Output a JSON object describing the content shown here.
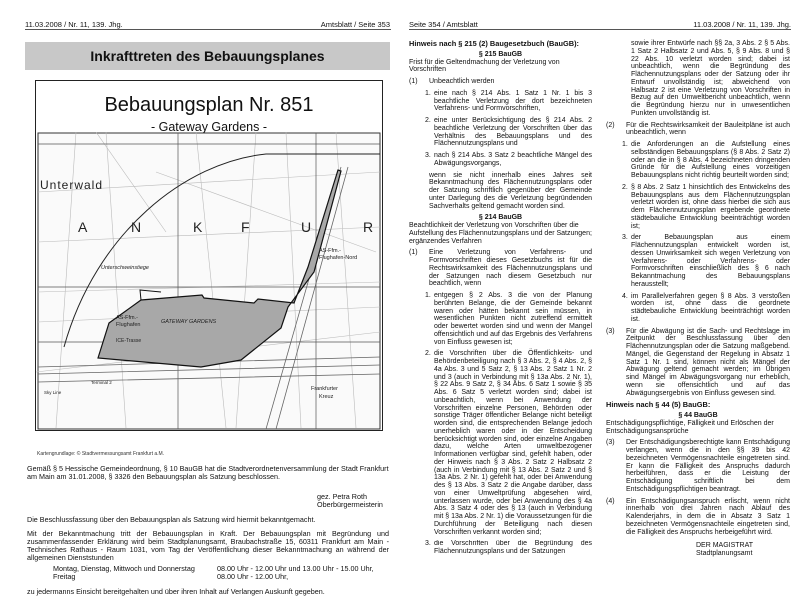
{
  "left_page": {
    "header_left": "11.03.2008 / Nr. 11, 139. Jhg.",
    "header_right": "Amtsblatt / Seite 353",
    "section_title": "Inkrafttreten des Bebauungsplanes",
    "map": {
      "title": "Bebauungsplan Nr. 851",
      "subtitle": "- Gateway Gardens -",
      "labels": [
        "Unterwald",
        "A",
        "N",
        "K",
        "F",
        "U",
        "R",
        "Unterschweinstiege",
        "AS-Ffm.-",
        "Flughafen-Nord",
        "AS-Ffm.-",
        "Flughafen",
        "GATEWAY GARDENS",
        "ICE-Trasse",
        "Terminal 2",
        "Sky Line",
        "Frankfurter",
        "Kreuz"
      ],
      "caption": "Kartengrundlage: © Stadtvermessungsamt Frankfurt a.M."
    },
    "para1": "Gemäß § 5 Hessische Gemeindeordnung, § 10 BauGB hat die Stadtverordnetenversammlung der Stadt Frankfurt am Main am 31.01.2008, § 3326 den Bebauungsplan als Satzung beschlossen.",
    "signature_name": "gez. Petra Roth",
    "signature_title": "Oberbürgermeisterin",
    "para2": "Die Beschlussfassung über den Bebauungsplan als Satzung wird hiermit bekanntgemacht.",
    "para3": "Mit der Bekanntmachung tritt der Bebauungsplan in Kraft. Der Bebauungsplan mit Begründung und zusammenfassender Erklärung wird beim Stadtplanungsamt, Braubachstraße 15, 60311 Frankfurt am Main - Technisches Rathaus - Raum 1031, vom Tag der Veröffentlichung dieser Bekanntmachung an während der allgemeinen Dienststunden",
    "hours": [
      {
        "days": "Montag, Dienstag, Mittwoch und Donnerstag",
        "time": "08.00 Uhr - 12.00 Uhr und 13.00 Uhr - 15.00 Uhr,"
      },
      {
        "days": "Freitag",
        "time": "08.00 Uhr - 12.00 Uhr,"
      }
    ],
    "para4": "zu jedermanns Einsicht bereitgehalten und über ihren Inhalt auf Verlangen Auskunft gegeben."
  },
  "right_page": {
    "header_left": "Seite 354 / Amtsblatt",
    "header_right": "11.03.2008 / Nr. 11, 139. Jhg.",
    "h215": "Hinweis nach § 215 (2) Baugesetzbuch (BauGB):",
    "s215_title": "§ 215 BauGB",
    "s215_sub": "Frist für die Geltendmachung der Verletzung von Vorschriften",
    "s215_1_num": "(1)",
    "s215_1_text": "Unbeachtlich werden",
    "s215_1_items": [
      {
        "n": "1.",
        "t": "eine nach § 214 Abs. 1 Satz 1 Nr. 1 bis 3 beachtliche Verletzung der dort bezeichneten Verfahrens- und Formvorschriften,"
      },
      {
        "n": "2.",
        "t": "eine unter Berücksichtigung des § 214 Abs. 2 beachtliche Verletzung der Vorschriften über das Verhältnis des Bebauungsplans und des Flächennutzungsplans und"
      },
      {
        "n": "3.",
        "t": "nach § 214 Abs. 3 Satz 2 beachtliche Mängel des Abwägungsvorgangs,"
      }
    ],
    "s215_1_tail": "wenn sie nicht innerhalb eines Jahres seit Bekanntmachung des Flächennutzungsplans oder der Satzung schriftlich gegenüber der Gemeinde unter Darlegung des die Verletzung begründenden Sachverhalts geltend gemacht worden sind.",
    "s214_title": "§ 214 BauGB",
    "s214_sub": "Beachtlichkeit der Verletzung von Vorschriften über die Aufstellung des Flächennutzungsplans und der Satzungen; ergänzendes Verfahren",
    "s214_1_num": "(1)",
    "s214_1_text": "Eine Verletzung von Verfahrens- und Formvorschriften dieses Gesetzbuchs ist für die Rechtswirksamkeit des Flächennutzungsplans und der Satzungen nach diesem Gesetzbuch nur beachtlich, wenn",
    "s214_1_items": [
      {
        "n": "1.",
        "t": "entgegen § 2 Abs. 3 die von der Planung berührten Belange, die der Gemeinde bekannt waren oder hätten bekannt sein müssen, in wesentlichen Punkten nicht zutreffend ermittelt oder bewertet worden sind und wenn der Mangel offensichtlich und auf das Ergebnis des Verfahrens von Einfluss gewesen ist;"
      },
      {
        "n": "2.",
        "t": "die Vorschriften über die Öffentlichkeits- und Behördenbeteiligung nach § 3 Abs. 2, § 4 Abs. 2, § 4a Abs. 3 und 5 Satz 2, § 13 Abs. 2 Satz 1 Nr. 2 und 3 (auch in Verbindung mit § 13a Abs. 2 Nr. 1), § 22 Abs. 9 Satz 2, § 34 Abs. 6 Satz 1 sowie § 35 Abs. 6 Satz 5 verletzt worden sind; dabei ist unbeachtlich, wenn bei Anwendung der Vorschriften einzelne Personen, Behörden oder sonstige Träger öffentlicher Belange nicht beteiligt worden sind, die entsprechenden Belange jedoch unerheblich waren oder in der Entscheidung berücksichtigt worden sind, oder einzelne Angaben dazu, welche Arten umweltbezogener Informationen verfügbar sind, gefehlt haben, oder der Hinweis nach § 3 Abs. 2 Satz 2 Halbsatz 2 (auch in Verbindung mit § 13 Abs. 2 Satz 2 und § 13a Abs. 2 Nr. 1) gefehlt hat, oder bei Anwendung des § 13 Abs. 3 Satz 2 die Angabe darüber, dass von einer Umweltprüfung abgesehen wird, unterlassen wurde, oder bei Anwendung des § 4a Abs. 3 Satz 4 oder des § 13 (auch in Verbindung mit § 13a Abs. 2 Nr. 1) die Voraussetzungen für die Durchführung der Beteiligung nach diesen Vorschriften verkannt worden sind;"
      },
      {
        "n": "3.",
        "t": "die Vorschriften über die Begründung des Flächennutzungsplans und der Satzungen sowie ihrer Entwürfe nach §§ 2a, 3 Abs. 2 § 5 Abs. 1 Satz 2 Halbsatz 2 und Abs. 5, § 9 Abs. 8 und § 22 Abs. 10 verletzt worden sind; dabei ist unbeachtlich, wenn die Begründung des Flächennutzungsplans oder der Satzung oder ihr Entwurf unvollständig ist; abweichend von Halbsatz 2 ist eine Verletzung von Vorschriften in Bezug auf den Umweltbericht unbeachtlich, wenn die Begründung hierzu nur in unwesentlichen Punkten unvollständig ist."
      }
    ],
    "s214_2_num": "(2)",
    "s214_2_text": "Für die Rechtswirksamkeit der Bauleitpläne ist auch unbeachtlich, wenn",
    "s214_2_items": [
      {
        "n": "1.",
        "t": "die Anforderungen an die Aufstellung eines selbständigen Bebauungsplans (§ 8 Abs. 2 Satz 2) oder an die in § 8 Abs. 4 bezeichneten dringenden Gründe für die Aufstellung eines vorzeitigen Bebauungsplans nicht richtig beurteilt worden sind;"
      },
      {
        "n": "2.",
        "t": "§ 8 Abs. 2 Satz 1 hinsichtlich des Entwickelns des Bebauungsplans aus dem Flächennutzungsplan verletzt worden ist, ohne dass hierbei die sich aus dem Flächennutzungsplan ergebende geordnete städtebauliche Entwicklung beeinträchtigt worden ist;"
      },
      {
        "n": "3.",
        "t": "der Bebauungsplan aus einem Flächennutzungsplan entwickelt worden ist, dessen Unwirksamkeit sich wegen Verletzung von Verfahrens- oder Verfahrens- oder Formvorschriften einschließlich des § 6 nach Bekanntmachung des Bebauungsplans herausstellt;"
      },
      {
        "n": "4.",
        "t": "im Parallelverfahren gegen § 8 Abs. 3 verstoßen worden ist, ohne dass die geordnete städtebauliche Entwicklung beeinträchtigt worden ist."
      }
    ],
    "s214_3_num": "(3)",
    "s214_3_text": "Für die Abwägung ist die Sach- und Rechtslage im Zeitpunkt der Beschlussfassung über den Flächennutzungsplan oder die Satzung maßgebend. Mängel, die Gegenstand der Regelung in Absatz 1 Satz 1 Nr. 1 sind, können nicht als Mängel der Abwägung geltend gemacht werden; im Übrigen sind Mängel im Abwägungsvorgang nur erheblich, wenn sie offensichtlich und auf das Abwägungsergebnis von Einfluss gewesen sind.",
    "h44": "Hinweis nach § 44 (5) BauGB:",
    "s44_title": "§ 44 BauGB",
    "s44_sub": "Entschädigungspflichtige, Fälligkeit und Erlöschen der Entschädigungsansprüche",
    "s44_items": [
      {
        "n": "(3)",
        "t": "Der Entschädigungsberechtigte kann Entschädigung verlangen, wenn die in den §§ 39 bis 42 bezeichneten Vermögensnachteile eingetreten sind. Er kann die Fälligkeit des Anspruchs dadurch herbeiführen, dass er die Leistung der Entschädigung schriftlich bei dem Entschädigungspflichtigen beantragt."
      },
      {
        "n": "(4)",
        "t": "Ein Entschädigungsanspruch erlischt, wenn nicht innerhalb von drei Jahren nach Ablauf des Kalenderjahrs, in dem die in Absatz 3 Satz 1 bezeichneten Vermögensnachteile eingetreten sind, die Fälligkeit des Anspruchs herbeigeführt wird."
      }
    ],
    "sign1": "DER MAGISTRAT",
    "sign2": "Stadtplanungsamt"
  }
}
